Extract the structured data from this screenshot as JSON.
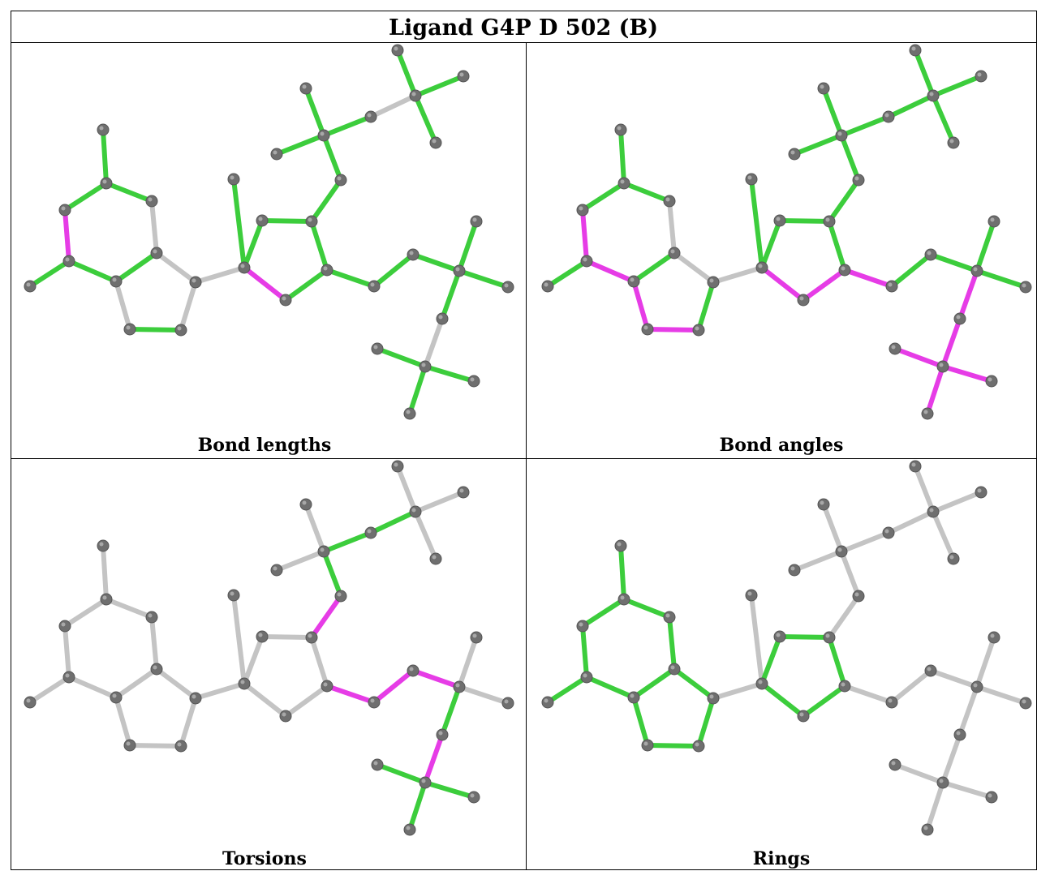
{
  "title": "Ligand G4P D 502 (B)",
  "colors": {
    "green": "#3ccd3c",
    "magenta": "#e63ce6",
    "gray": "#c4c4c4",
    "atom": "#6f6f6f",
    "border": "#000000"
  },
  "panels": [
    {
      "caption": "Bond lengths",
      "magenta": [
        "N3-C2",
        "C3'-O4'"
      ],
      "green": [
        "C2-N2",
        "N3-C4",
        "C4-C5",
        "C5-C6",
        "C6-O6",
        "C6-N1",
        "N1-C2",
        "C8-N9",
        "C3'-C2'",
        "C2'-C1'",
        "C1'-O1'",
        "C2'-O2'",
        "O2'-Pa",
        "C3'-C4'",
        "O4'-C4'",
        "C4'-C5'",
        "C5'-O5'",
        "O5'-Pb",
        "Pb-O1B",
        "Pb-O2B",
        "Pb-O3B",
        "Pa-O1A",
        "Pa-O2A",
        "Pa-O3A",
        "Pc-O1G",
        "Pc-O2G",
        "Pc-O3G",
        "Pc-O3C"
      ],
      "gray": [
        "C4-N9",
        "N7-C8",
        "C5-N7",
        "N9-C1'",
        "O3A-Pc",
        "O3B-O3A"
      ]
    },
    {
      "caption": "Bond angles",
      "magenta": [
        "N3-C2",
        "N3-C4",
        "C4-N9",
        "C8-N9",
        "C1'-O4'",
        "O4'-C4'",
        "C4'-C5'",
        "Pb-O3B",
        "O3B-O3A",
        "O3A-Pc",
        "Pc-O3G",
        "Pc-O3C"
      ],
      "green": [
        "C2-N2",
        "C4-C5",
        "C6-O6",
        "C6-N1",
        "N1-C2",
        "N7-C8",
        "C3'-C2'",
        "C2'-C1'",
        "C1'-O1'",
        "C2'-O2'",
        "O2'-Pa",
        "C3'-C4'",
        "C5'-O5'",
        "O5'-Pb",
        "Pb-O1B",
        "Pb-O2B",
        "Pa-O1A",
        "Pa-O2A",
        "Pa-O3A",
        "Pc-O1G",
        "Pc-O2G"
      ],
      "gray": [
        "C5-C6",
        "C5-N7",
        "N9-C1'"
      ]
    },
    {
      "caption": "Torsions",
      "magenta": [
        "C2'-O2'",
        "C3'-C5'",
        "C5'-O5'",
        "O5'-Pb",
        "O3A-Pc"
      ],
      "green": [
        "O2'-C2'x",
        "Pa-O1A",
        "Pa-O2A",
        "O3B-O3A"
      ],
      "gray": []
    },
    {
      "caption": "Rings",
      "magenta": [],
      "green": [
        "N1-C2",
        "N3-C2",
        "N3-C4",
        "C4-C5",
        "C5-C6",
        "C6-N1",
        "C4-N9",
        "C5-N7",
        "N7-C8",
        "C8-N9",
        "C3'-C2'",
        "C2'-C1'",
        "C1'-O4'",
        "O4'-C4'",
        "C4'-C3'"
      ],
      "gray": []
    }
  ]
}
